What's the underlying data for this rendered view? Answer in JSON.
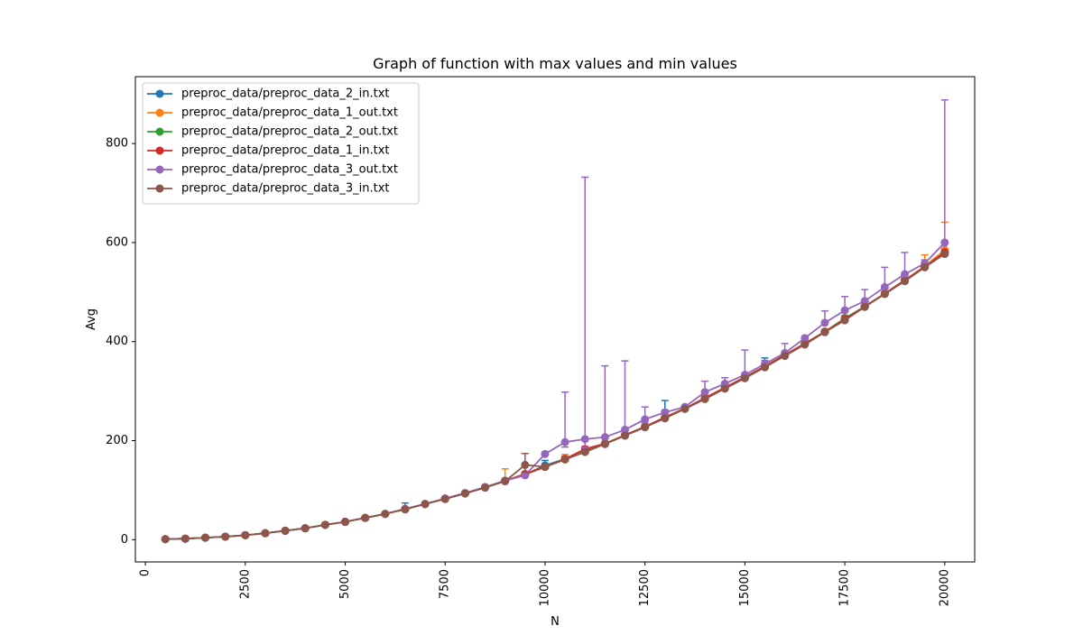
{
  "chart_data": {
    "type": "line",
    "title": "Graph of function with max values and min values",
    "xlabel": "N",
    "ylabel": "Avg",
    "xlim": [
      -250,
      20750
    ],
    "ylim": [
      -45,
      935
    ],
    "x_ticks": [
      0,
      2500,
      5000,
      7500,
      10000,
      12500,
      15000,
      17500,
      20000
    ],
    "y_ticks": [
      0,
      200,
      400,
      600,
      800
    ],
    "x_tick_labels": [
      "0",
      "2500",
      "5000",
      "7500",
      "10000",
      "12500",
      "15000",
      "17500",
      "20000"
    ],
    "y_tick_labels": [
      "0",
      "200",
      "400",
      "600",
      "800"
    ],
    "x_tick_rotation": 90,
    "grid": false,
    "legend_position": "top-left",
    "markers": "circle",
    "error_bars": "min/max caps",
    "x": [
      500,
      1000,
      1500,
      2000,
      2500,
      3000,
      3500,
      4000,
      4500,
      5000,
      5500,
      6000,
      6500,
      7000,
      7500,
      8000,
      8500,
      9000,
      9500,
      10000,
      10500,
      11000,
      11500,
      12000,
      12500,
      13000,
      13500,
      14000,
      14500,
      15000,
      15500,
      16000,
      16500,
      17000,
      17500,
      18000,
      18500,
      19000,
      19500,
      20000
    ],
    "series": [
      {
        "name": "preproc_data/preproc_data_2_in.txt",
        "color": "#1f77b4",
        "values": [
          1,
          2,
          4,
          6,
          9,
          13,
          18,
          23,
          30,
          36,
          44,
          52,
          62,
          72,
          83,
          94,
          106,
          119,
          132,
          150,
          163,
          178,
          194,
          211,
          228,
          247,
          265,
          286,
          307,
          328,
          350,
          373,
          396,
          420,
          445,
          471,
          497,
          524,
          551,
          580
        ],
        "max": [
          1,
          2,
          4,
          6,
          9,
          13,
          18,
          23,
          30,
          36,
          44,
          52,
          74,
          72,
          83,
          94,
          106,
          119,
          132,
          160,
          163,
          178,
          194,
          211,
          228,
          281,
          271,
          286,
          307,
          328,
          367,
          373,
          396,
          420,
          445,
          471,
          497,
          524,
          551,
          585
        ],
        "min": [
          1,
          2,
          4,
          6,
          9,
          13,
          18,
          23,
          30,
          36,
          44,
          52,
          62,
          72,
          83,
          94,
          106,
          119,
          128,
          150,
          163,
          178,
          194,
          211,
          228,
          247,
          265,
          286,
          307,
          328,
          350,
          373,
          396,
          420,
          445,
          471,
          497,
          524,
          551,
          580
        ]
      },
      {
        "name": "preproc_data/preproc_data_1_out.txt",
        "color": "#ff7f0e",
        "values": [
          1,
          2,
          4,
          6,
          9,
          13,
          18,
          23,
          30,
          36,
          44,
          52,
          62,
          72,
          83,
          94,
          106,
          119,
          133,
          147,
          163,
          178,
          194,
          211,
          228,
          247,
          265,
          286,
          307,
          328,
          350,
          373,
          396,
          420,
          445,
          471,
          497,
          524,
          552,
          585
        ],
        "max": [
          1,
          2,
          4,
          6,
          9,
          13,
          18,
          23,
          30,
          36,
          44,
          52,
          62,
          72,
          83,
          94,
          106,
          143,
          133,
          147,
          172,
          178,
          194,
          211,
          228,
          247,
          265,
          286,
          307,
          328,
          350,
          373,
          396,
          420,
          445,
          471,
          497,
          524,
          575,
          641
        ],
        "min": [
          1,
          2,
          4,
          6,
          9,
          13,
          18,
          23,
          30,
          36,
          44,
          52,
          62,
          72,
          83,
          94,
          106,
          119,
          133,
          147,
          163,
          178,
          194,
          211,
          228,
          247,
          265,
          286,
          307,
          328,
          350,
          373,
          396,
          420,
          445,
          471,
          497,
          524,
          552,
          585
        ]
      },
      {
        "name": "preproc_data/preproc_data_2_out.txt",
        "color": "#2ca02c",
        "values": [
          1,
          2,
          4,
          6,
          9,
          13,
          18,
          23,
          30,
          36,
          44,
          52,
          62,
          72,
          83,
          94,
          106,
          119,
          132,
          147,
          162,
          178,
          194,
          211,
          228,
          247,
          265,
          286,
          307,
          328,
          350,
          373,
          396,
          420,
          447,
          471,
          497,
          524,
          551,
          580
        ],
        "max": [
          1,
          2,
          4,
          6,
          9,
          13,
          18,
          23,
          30,
          36,
          44,
          52,
          62,
          72,
          83,
          94,
          106,
          119,
          132,
          147,
          162,
          178,
          194,
          211,
          228,
          247,
          265,
          286,
          307,
          328,
          350,
          373,
          396,
          420,
          453,
          471,
          497,
          524,
          551,
          580
        ],
        "min": [
          1,
          2,
          4,
          6,
          9,
          13,
          18,
          23,
          30,
          36,
          44,
          52,
          62,
          72,
          83,
          94,
          106,
          119,
          132,
          147,
          162,
          178,
          194,
          211,
          228,
          247,
          265,
          286,
          307,
          328,
          350,
          373,
          396,
          420,
          447,
          471,
          497,
          524,
          551,
          580
        ]
      },
      {
        "name": "preproc_data/preproc_data_1_in.txt",
        "color": "#d62728",
        "values": [
          1,
          2,
          4,
          6,
          9,
          13,
          18,
          23,
          30,
          36,
          44,
          52,
          62,
          72,
          83,
          94,
          106,
          119,
          132,
          147,
          163,
          183,
          194,
          211,
          228,
          247,
          265,
          286,
          307,
          328,
          350,
          373,
          396,
          420,
          445,
          471,
          497,
          524,
          551,
          580
        ],
        "max": [
          1,
          2,
          4,
          6,
          9,
          13,
          18,
          23,
          30,
          36,
          44,
          52,
          62,
          72,
          83,
          94,
          106,
          119,
          132,
          147,
          168,
          188,
          194,
          211,
          228,
          247,
          265,
          286,
          307,
          328,
          350,
          373,
          396,
          420,
          445,
          471,
          497,
          524,
          551,
          580
        ],
        "min": [
          1,
          2,
          4,
          6,
          9,
          13,
          18,
          23,
          30,
          36,
          44,
          52,
          62,
          72,
          83,
          94,
          106,
          119,
          132,
          147,
          163,
          180,
          194,
          211,
          228,
          247,
          265,
          286,
          307,
          328,
          350,
          373,
          396,
          420,
          445,
          471,
          497,
          524,
          551,
          580
        ]
      },
      {
        "name": "preproc_data/preproc_data_3_out.txt",
        "color": "#9467bd",
        "values": [
          1,
          2,
          4,
          6,
          9,
          13,
          18,
          23,
          30,
          36,
          44,
          52,
          62,
          72,
          83,
          94,
          106,
          119,
          130,
          173,
          197,
          203,
          207,
          222,
          243,
          257,
          268,
          298,
          315,
          333,
          355,
          377,
          407,
          438,
          463,
          482,
          510,
          536,
          558,
          600
        ],
        "max": [
          1,
          2,
          4,
          6,
          9,
          13,
          18,
          23,
          30,
          36,
          44,
          52,
          62,
          72,
          83,
          94,
          106,
          119,
          150,
          173,
          298,
          732,
          351,
          361,
          268,
          262,
          268,
          320,
          327,
          383,
          362,
          396,
          407,
          462,
          491,
          505,
          550,
          580,
          565,
          888
        ],
        "min": [
          1,
          2,
          4,
          6,
          9,
          13,
          18,
          23,
          30,
          36,
          44,
          52,
          62,
          72,
          83,
          94,
          106,
          119,
          130,
          173,
          187,
          186,
          195,
          216,
          236,
          250,
          268,
          298,
          315,
          333,
          355,
          377,
          407,
          438,
          463,
          482,
          510,
          536,
          558,
          600
        ]
      },
      {
        "name": "preproc_data/preproc_data_3_in.txt",
        "color": "#8c564b",
        "values": [
          1,
          2,
          4,
          6,
          9,
          13,
          18,
          23,
          30,
          36,
          44,
          52,
          61,
          72,
          82,
          93,
          105,
          118,
          151,
          147,
          162,
          177,
          193,
          210,
          227,
          245,
          264,
          284,
          305,
          326,
          348,
          371,
          394,
          419,
          443,
          470,
          496,
          522,
          550,
          577
        ],
        "max": [
          1,
          2,
          4,
          6,
          9,
          13,
          18,
          23,
          30,
          36,
          44,
          52,
          61,
          72,
          82,
          93,
          105,
          118,
          174,
          147,
          162,
          177,
          193,
          210,
          227,
          245,
          264,
          284,
          305,
          326,
          348,
          371,
          394,
          419,
          443,
          470,
          496,
          522,
          550,
          577
        ],
        "min": [
          1,
          2,
          4,
          6,
          9,
          13,
          18,
          23,
          30,
          36,
          44,
          52,
          61,
          72,
          82,
          93,
          105,
          118,
          136,
          147,
          162,
          177,
          193,
          210,
          227,
          245,
          264,
          284,
          305,
          326,
          348,
          371,
          394,
          419,
          443,
          470,
          496,
          522,
          550,
          577
        ]
      }
    ]
  }
}
